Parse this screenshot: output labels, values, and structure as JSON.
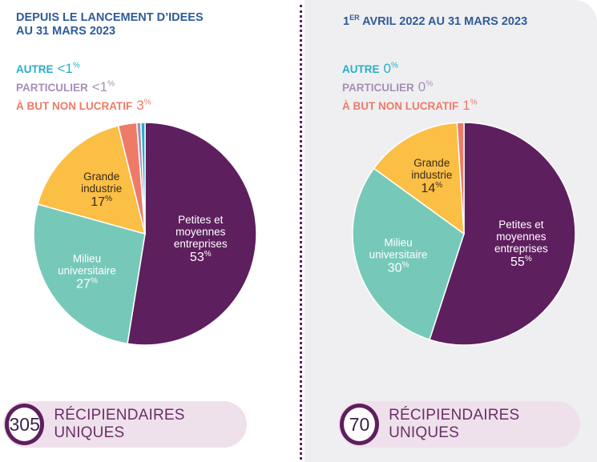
{
  "colors": {
    "pme": "#5e1f5e",
    "universitaire": "#76c9b8",
    "industrie": "#fbbf45",
    "non_lucratif": "#ed7b68",
    "particulier": "#a98db7",
    "autre": "#25afc7",
    "title": "#2f5b99"
  },
  "left": {
    "title_line1": "DEPUIS LE LANCEMENT D’IDEeS",
    "title_line2": "AU 31 MARS 2023",
    "small_legend": [
      {
        "label": "AUTRE",
        "value": "<1",
        "unit": "%",
        "color": "#25afc7"
      },
      {
        "label": "PARTICULIER",
        "value": "<1",
        "unit": "%",
        "color": "#a98db7"
      },
      {
        "label": "À BUT NON LUCRATIF",
        "value": "3",
        "unit": "%",
        "color": "#ed7b68"
      }
    ],
    "badge_number": "305",
    "badge_text": "RÉCIPIENDAIRES UNIQUES"
  },
  "right": {
    "title_sup_num": "1",
    "title_sup": "ER",
    "title_rest": " AVRIL 2022 AU 31 MARS 2023",
    "small_legend": [
      {
        "label": "AUTRE",
        "value": "0",
        "unit": "%",
        "color": "#25afc7"
      },
      {
        "label": "PARTICULIER",
        "value": "0",
        "unit": "%",
        "color": "#a98db7"
      },
      {
        "label": "À BUT NON LUCRATIF",
        "value": "1",
        "unit": "%",
        "color": "#ed7b68"
      }
    ],
    "badge_number": "70",
    "badge_text": "RÉCIPIENDAIRES UNIQUES"
  },
  "chart_data": [
    {
      "type": "pie",
      "title": "DEPUIS LE LANCEMENT D’IDEeS AU 31 MARS 2023",
      "slices": [
        {
          "name": "Petites et moyennes entreprises",
          "lines": [
            "Petites et",
            "moyennes",
            "entreprises"
          ],
          "value": 53,
          "label": "53",
          "color": "#5e1f5e"
        },
        {
          "name": "Milieu universitaire",
          "lines": [
            "Milieu",
            "universitaire"
          ],
          "value": 27,
          "label": "27",
          "color": "#76c9b8"
        },
        {
          "name": "Grande industrie",
          "lines": [
            "Grande",
            "industrie"
          ],
          "value": 17,
          "label": "17",
          "color": "#fbbf45"
        },
        {
          "name": "À but non lucratif",
          "lines": [],
          "value": 2.7,
          "label": "",
          "color": "#ed7b68"
        },
        {
          "name": "Particulier",
          "lines": [],
          "value": 0.6,
          "label": "",
          "color": "#a98db7"
        },
        {
          "name": "Autre",
          "lines": [],
          "value": 0.6,
          "label": "",
          "color": "#25afc7"
        }
      ],
      "total_recipients": 305
    },
    {
      "type": "pie",
      "title": "1ER AVRIL 2022 AU 31 MARS 2023",
      "slices": [
        {
          "name": "Petites et moyennes entreprises",
          "lines": [
            "Petites et",
            "moyennes",
            "entreprises"
          ],
          "value": 55,
          "label": "55",
          "color": "#5e1f5e"
        },
        {
          "name": "Milieu universitaire",
          "lines": [
            "Milieu",
            "universitaire"
          ],
          "value": 30,
          "label": "30",
          "color": "#76c9b8"
        },
        {
          "name": "Grande industrie",
          "lines": [
            "Grande",
            "industrie"
          ],
          "value": 14,
          "label": "14",
          "color": "#fbbf45"
        },
        {
          "name": "À but non lucratif",
          "lines": [],
          "value": 1,
          "label": "",
          "color": "#ed7b68"
        }
      ],
      "total_recipients": 70
    }
  ]
}
